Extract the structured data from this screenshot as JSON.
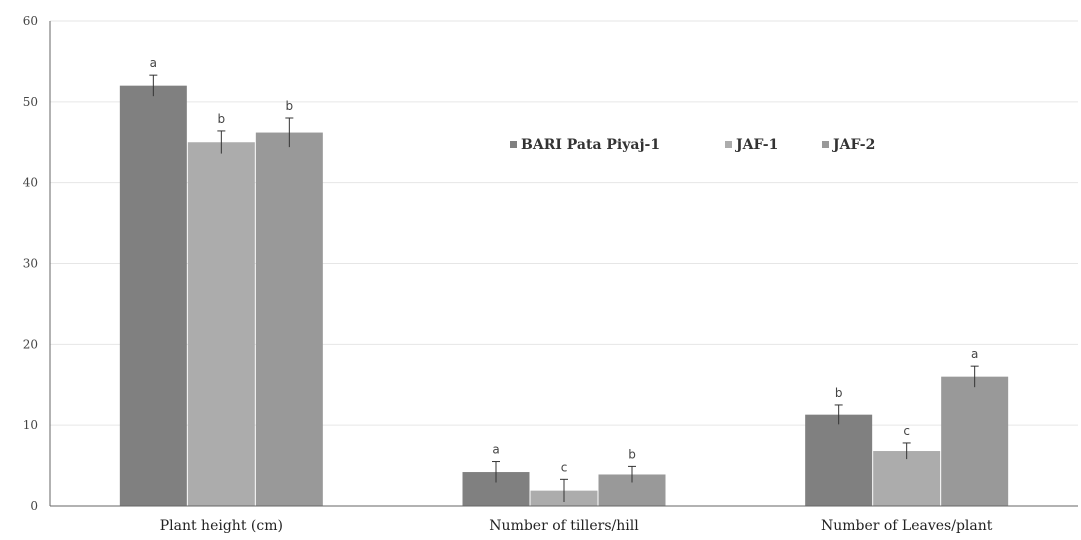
{
  "chart_data": {
    "type": "bar",
    "categories": [
      "Plant height (cm)",
      "Number of tillers/hill",
      "Number of Leaves/plant"
    ],
    "series": [
      {
        "name": "BARI Pata Piyaj-1",
        "color": "#808080",
        "values": [
          52,
          4.2,
          11.3
        ],
        "errors": [
          1.3,
          1.3,
          1.2
        ],
        "letters": [
          "a",
          "a",
          "b"
        ]
      },
      {
        "name": "JAF-1",
        "color": "#acacac",
        "values": [
          45,
          1.9,
          6.8
        ],
        "errors": [
          1.4,
          1.4,
          1.0
        ],
        "letters": [
          "b",
          "c",
          "c"
        ]
      },
      {
        "name": "JAF-2",
        "color": "#999999",
        "values": [
          46.2,
          3.9,
          16
        ],
        "errors": [
          1.8,
          1.0,
          1.3
        ],
        "letters": [
          "b",
          "b",
          "a"
        ]
      }
    ],
    "ylim": [
      0,
      60
    ],
    "yticks": [
      0,
      10,
      20,
      30,
      40,
      50,
      60
    ],
    "grid": true,
    "legend": "top-center",
    "title": "",
    "xlabel": "",
    "ylabel": ""
  }
}
